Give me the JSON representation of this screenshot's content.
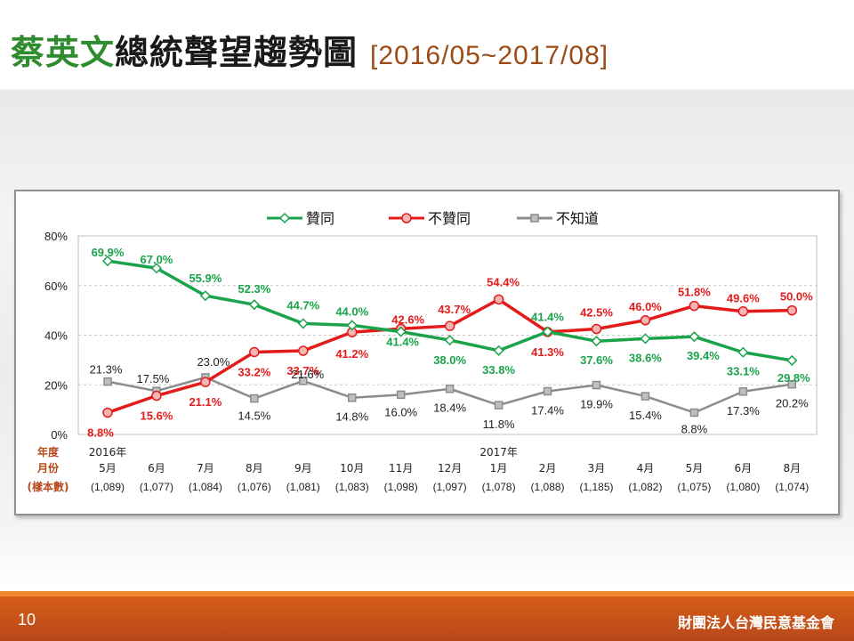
{
  "title": {
    "highlight": "蔡英文",
    "rest": "總統聲望趨勢圖",
    "range": "[2016/05~2017/08]"
  },
  "footer": {
    "page_number": "10",
    "organization": "財團法人台灣民意基金會"
  },
  "colors": {
    "approve": "#1aa34a",
    "disapprove": "#e31b1b",
    "unknown": "#8c8c8c",
    "title_highlight": "#2e8b2e",
    "footer": "#d55e18"
  },
  "chart_data": {
    "type": "line",
    "ylim": [
      0,
      80
    ],
    "yticks": [
      "0%",
      "20%",
      "40%",
      "60%",
      "80%"
    ],
    "legend_position": "top",
    "row_labels": [
      "年度",
      "月份",
      "(樣本數)"
    ],
    "categories": [
      {
        "year": "2016年",
        "month": "5月",
        "sample": "(1,089)"
      },
      {
        "year": "",
        "month": "6月",
        "sample": "(1,077)"
      },
      {
        "year": "",
        "month": "7月",
        "sample": "(1,084)"
      },
      {
        "year": "",
        "month": "8月",
        "sample": "(1,076)"
      },
      {
        "year": "",
        "month": "9月",
        "sample": "(1,081)"
      },
      {
        "year": "",
        "month": "10月",
        "sample": "(1,083)"
      },
      {
        "year": "",
        "month": "11月",
        "sample": "(1,098)"
      },
      {
        "year": "",
        "month": "12月",
        "sample": "(1,097)"
      },
      {
        "year": "2017年",
        "month": "1月",
        "sample": "(1,078)"
      },
      {
        "year": "",
        "month": "2月",
        "sample": "(1,088)"
      },
      {
        "year": "",
        "month": "3月",
        "sample": "(1,185)"
      },
      {
        "year": "",
        "month": "4月",
        "sample": "(1,082)"
      },
      {
        "year": "",
        "month": "5月",
        "sample": "(1,075)"
      },
      {
        "year": "",
        "month": "6月",
        "sample": "(1,080)"
      },
      {
        "year": "",
        "month": "8月",
        "sample": "(1,074)"
      }
    ],
    "series": [
      {
        "name": "贊同",
        "key": "approve",
        "values": [
          69.9,
          67.0,
          55.9,
          52.3,
          44.7,
          44.0,
          41.4,
          38.0,
          33.8,
          41.4,
          37.6,
          38.6,
          39.4,
          33.1,
          29.8
        ]
      },
      {
        "name": "不贊同",
        "key": "disapprove",
        "values": [
          8.8,
          15.6,
          21.1,
          33.2,
          33.7,
          41.2,
          42.6,
          43.7,
          54.4,
          41.3,
          42.5,
          46.0,
          51.8,
          49.6,
          50.0
        ]
      },
      {
        "name": "不知道",
        "key": "unknown",
        "values": [
          21.3,
          17.5,
          23.0,
          14.5,
          21.6,
          14.8,
          16.0,
          18.4,
          11.8,
          17.4,
          19.9,
          15.4,
          8.8,
          17.3,
          20.2
        ]
      }
    ]
  }
}
